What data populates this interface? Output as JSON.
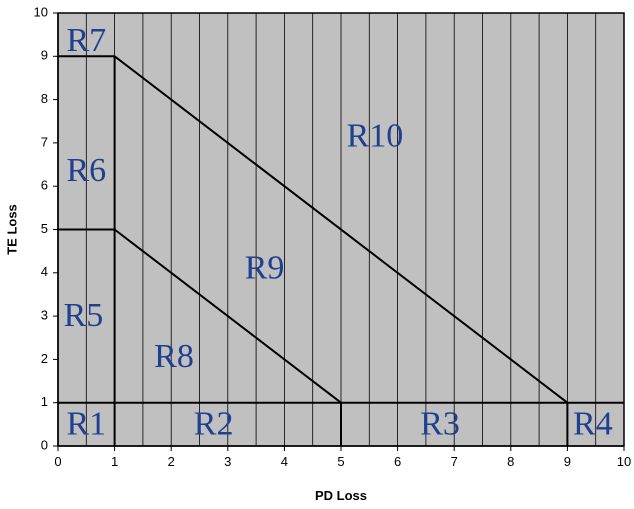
{
  "chart_data": {
    "type": "area",
    "title": "",
    "xlabel": "PD Loss",
    "ylabel": "TE Loss",
    "xlim": [
      0,
      10
    ],
    "ylim": [
      0,
      10
    ],
    "xticks": [
      0,
      1,
      2,
      3,
      4,
      5,
      6,
      7,
      8,
      9,
      10
    ],
    "yticks": [
      0,
      1,
      2,
      3,
      4,
      5,
      6,
      7,
      8,
      9,
      10
    ],
    "grid": "vertical lines every 0.5",
    "colors": {
      "plot_background": "#c0c0c0",
      "grid": "#000000",
      "boundary": "#000000",
      "region_label": "#1f3f8f"
    },
    "boundaries": [
      {
        "points": [
          [
            0,
            1
          ],
          [
            10,
            1
          ]
        ]
      },
      {
        "points": [
          [
            1,
            0
          ],
          [
            1,
            9
          ]
        ]
      },
      {
        "points": [
          [
            5,
            0
          ],
          [
            5,
            1
          ]
        ]
      },
      {
        "points": [
          [
            9,
            0
          ],
          [
            9,
            1
          ]
        ]
      },
      {
        "points": [
          [
            0,
            5
          ],
          [
            1,
            5
          ]
        ]
      },
      {
        "points": [
          [
            0,
            9
          ],
          [
            1,
            9
          ]
        ]
      },
      {
        "points": [
          [
            1,
            5
          ],
          [
            5,
            1
          ]
        ]
      },
      {
        "points": [
          [
            1,
            9
          ],
          [
            9,
            1
          ]
        ]
      }
    ],
    "regions": [
      {
        "label": "R1",
        "x": 0.5,
        "y": 0.45
      },
      {
        "label": "R2",
        "x": 2.75,
        "y": 0.45
      },
      {
        "label": "R3",
        "x": 6.75,
        "y": 0.45
      },
      {
        "label": "R4",
        "x": 9.45,
        "y": 0.45
      },
      {
        "label": "R5",
        "x": 0.45,
        "y": 2.95
      },
      {
        "label": "R6",
        "x": 0.5,
        "y": 6.3
      },
      {
        "label": "R7",
        "x": 0.5,
        "y": 9.3
      },
      {
        "label": "R8",
        "x": 2.05,
        "y": 2.0
      },
      {
        "label": "R9",
        "x": 3.65,
        "y": 4.05
      },
      {
        "label": "R10",
        "x": 5.6,
        "y": 7.1
      }
    ]
  }
}
